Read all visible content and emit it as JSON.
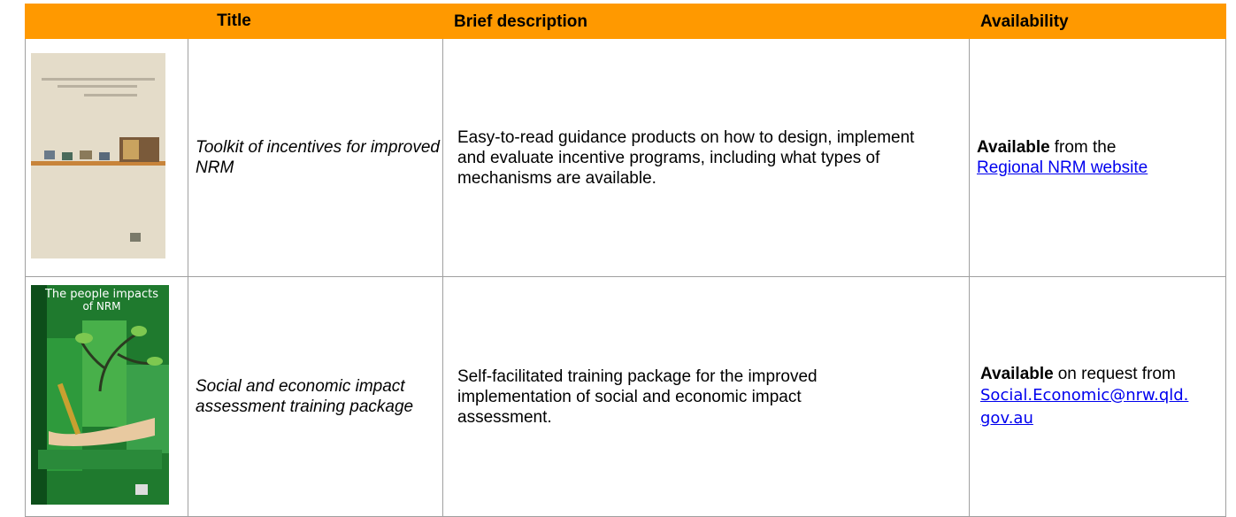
{
  "header": {
    "title": "Title",
    "description": "Brief description",
    "availability": "Availability"
  },
  "rows": [
    {
      "title": "Toolkit of incentives for improved NRM",
      "description": "Easy-to-read guidance products on how to design, implement and evaluate incentive programs, including what types of mechanisms are available.",
      "availability": {
        "status": "Available",
        "text": "from the",
        "link": "Regional NRM website"
      }
    },
    {
      "cover_text": [
        "The people impacts",
        "of NRM"
      ],
      "title": "Social and economic impact assessment training package",
      "description": "Self-facilitated training package for the improved implementation of social and economic impact assessment.",
      "availability": {
        "status": "Available",
        "text": "on request from",
        "link": "Social.Economic@nrw.qld.gov.au"
      }
    }
  ]
}
